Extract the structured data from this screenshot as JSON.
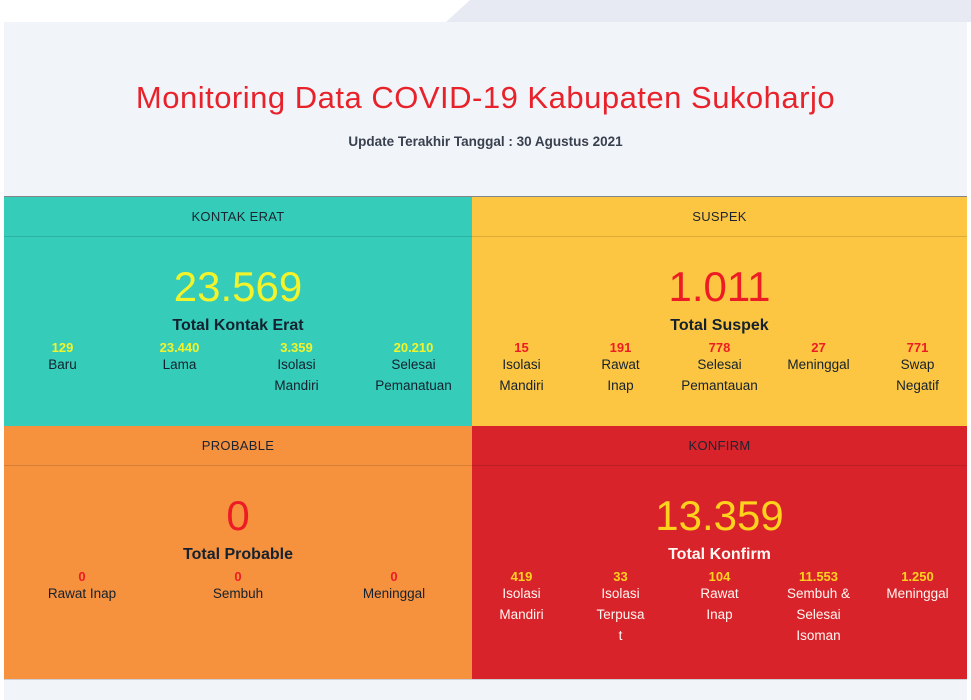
{
  "page": {
    "title": "Monitoring Data COVID-19 Kabupaten Sukoharjo",
    "subtitle": "Update Terakhir Tanggal : 30 Agustus 2021"
  },
  "colors": {
    "teal_card": "#35CDB9",
    "yellow_card": "#FDC642",
    "orange_card": "#F6913E",
    "red_card": "#D8232B",
    "yellow_number_text": "#F3F32B",
    "red_number_text": "#ED1C24",
    "dark_text": "#14212E",
    "title_red": "#E8222B",
    "page_background": "#F1F4F9",
    "top_strip_background": "#E7EAF3"
  },
  "cards": {
    "kontak_erat": {
      "header": "KONTAK ERAT",
      "total_value": "23.569",
      "total_label": "Total Kontak Erat",
      "stats": [
        {
          "value": "129",
          "label": "Baru"
        },
        {
          "value": "23.440",
          "label": "Lama"
        },
        {
          "value": "3.359",
          "label": "Isolasi\nMandiri"
        },
        {
          "value": "20.210",
          "label": "Selesai\nPemanatuan"
        }
      ]
    },
    "suspek": {
      "header": "SUSPEK",
      "total_value": "1.011",
      "total_label": "Total Suspek",
      "stats": [
        {
          "value": "15",
          "label": "Isolasi\nMandiri"
        },
        {
          "value": "191",
          "label": "Rawat\nInap"
        },
        {
          "value": "778",
          "label": "Selesai\nPemantauan"
        },
        {
          "value": "27",
          "label": "Meninggal"
        },
        {
          "value": "771",
          "label": "Swap\nNegatif"
        }
      ]
    },
    "probable": {
      "header": "PROBABLE",
      "total_value": "0",
      "total_label": "Total Probable",
      "stats": [
        {
          "value": "0",
          "label": "Rawat Inap"
        },
        {
          "value": "0",
          "label": "Sembuh"
        },
        {
          "value": "0",
          "label": "Meninggal"
        }
      ]
    },
    "konfirm": {
      "header": "KONFIRM",
      "total_value": "13.359",
      "total_label": "Total Konfirm",
      "stats": [
        {
          "value": "419",
          "label": "Isolasi\nMandiri"
        },
        {
          "value": "33",
          "label": "Isolasi\nTerpusa\nt"
        },
        {
          "value": "104",
          "label": "Rawat\nInap"
        },
        {
          "value": "11.553",
          "label": "Sembuh &\nSelesai\nIsoman"
        },
        {
          "value": "1.250",
          "label": "Meninggal"
        }
      ]
    }
  }
}
